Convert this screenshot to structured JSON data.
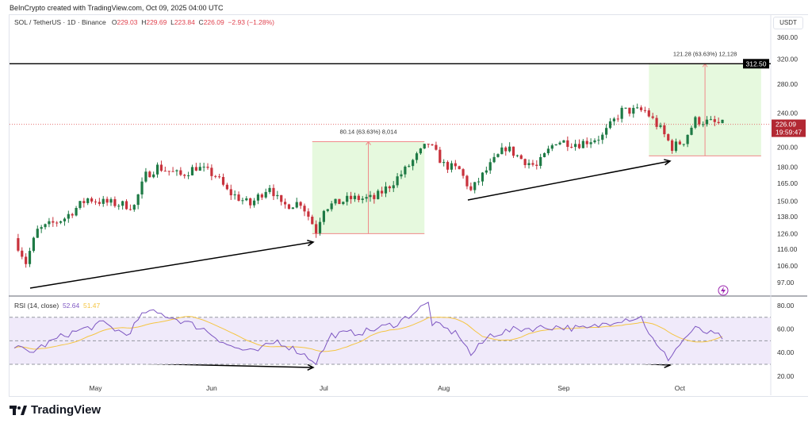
{
  "credit": "BeInCrypto created with TradingView.com, Oct 09, 2025 04:00 UTC",
  "legend": {
    "symbol": "SOL / TetherUS · 1D · Binance",
    "o_label": "O",
    "o": "229.03",
    "h_label": "H",
    "h": "229.69",
    "l_label": "L",
    "l": "223.84",
    "c_label": "C",
    "c": "226.09",
    "change": "−2.93 (−1.28%)"
  },
  "rsi_legend": {
    "name": "RSI (14, close)",
    "rsi": "52.64",
    "ma": "51.47"
  },
  "currency": "USDT",
  "logo": "TradingView",
  "colors": {
    "up": "#1e7a45",
    "down": "#c8323c",
    "rsi": "#7e57c2",
    "rsi_ma": "#f5c542",
    "box": "#e6f9de"
  },
  "chart_data": [
    {
      "type": "candlestick",
      "title": "SOL / TetherUS 1D",
      "ylabel": "USDT",
      "scale": "log",
      "y_ticks": [
        360,
        320,
        280,
        240,
        200,
        180,
        165,
        150,
        138,
        126,
        116,
        106,
        97
      ],
      "y_tick_labels": [
        "360.00",
        "320.00",
        "280.00",
        "240.00",
        "200.00",
        "180.00",
        "165.00",
        "150.00",
        "138.00",
        "126.00",
        "116.00",
        "106.00",
        "97.00"
      ],
      "x_ticks": [
        "May",
        "Jun",
        "Jul",
        "Aug",
        "Sep",
        "Oct"
      ],
      "x_tick_days": [
        21,
        51,
        80,
        111,
        142,
        172
      ],
      "close_keypoints_day_price": [
        [
          0,
          123
        ],
        [
          3,
          108
        ],
        [
          6,
          128
        ],
        [
          13,
          137
        ],
        [
          19,
          152
        ],
        [
          23,
          149
        ],
        [
          31,
          146
        ],
        [
          34,
          172
        ],
        [
          37,
          180
        ],
        [
          43,
          172
        ],
        [
          47,
          180
        ],
        [
          52,
          172
        ],
        [
          55,
          158
        ],
        [
          61,
          147
        ],
        [
          66,
          163
        ],
        [
          69,
          146
        ],
        [
          74,
          149
        ],
        [
          78,
          128
        ],
        [
          80,
          145
        ],
        [
          87,
          152
        ],
        [
          93,
          152
        ],
        [
          97,
          163
        ],
        [
          101,
          177
        ],
        [
          107,
          204
        ],
        [
          111,
          182
        ],
        [
          115,
          177
        ],
        [
          118,
          158
        ],
        [
          121,
          172
        ],
        [
          127,
          200
        ],
        [
          131,
          188
        ],
        [
          135,
          180
        ],
        [
          140,
          207
        ],
        [
          146,
          204
        ],
        [
          152,
          212
        ],
        [
          157,
          243
        ],
        [
          163,
          243
        ],
        [
          167,
          220
        ],
        [
          170,
          200
        ],
        [
          173,
          207
        ],
        [
          176,
          231
        ],
        [
          183,
          226
        ]
      ],
      "current_price": "226.09",
      "countdown": "19:59:47",
      "horizontal_level": "312.50",
      "measures": [
        {
          "label": "80.14 (63.63%) 8,014",
          "from": 126,
          "to": 206
        },
        {
          "label": "121.28 (63.63%) 12,128",
          "from": 191,
          "to": 312.5
        }
      ]
    },
    {
      "type": "line",
      "title": "RSI (14, close)",
      "ylim": [
        15,
        85
      ],
      "y_ticks": [
        80,
        60,
        40,
        20
      ],
      "y_tick_labels": [
        "80.00",
        "60.00",
        "40.00",
        "20.00"
      ],
      "band": [
        30,
        70
      ],
      "rsi_keypoints_day_value": [
        [
          0,
          45
        ],
        [
          4,
          40
        ],
        [
          13,
          55
        ],
        [
          23,
          65
        ],
        [
          29,
          55
        ],
        [
          34,
          75
        ],
        [
          39,
          72
        ],
        [
          45,
          65
        ],
        [
          49,
          60
        ],
        [
          56,
          45
        ],
        [
          62,
          40
        ],
        [
          68,
          50
        ],
        [
          74,
          40
        ],
        [
          78,
          32
        ],
        [
          82,
          55
        ],
        [
          91,
          58
        ],
        [
          99,
          65
        ],
        [
          105,
          78
        ],
        [
          107,
          82
        ],
        [
          108,
          65
        ],
        [
          115,
          55
        ],
        [
          118,
          38
        ],
        [
          123,
          55
        ],
        [
          130,
          60
        ],
        [
          140,
          62
        ],
        [
          148,
          60
        ],
        [
          156,
          68
        ],
        [
          162,
          70
        ],
        [
          166,
          45
        ],
        [
          169,
          35
        ],
        [
          174,
          55
        ],
        [
          176,
          60
        ],
        [
          183,
          53
        ]
      ]
    }
  ]
}
